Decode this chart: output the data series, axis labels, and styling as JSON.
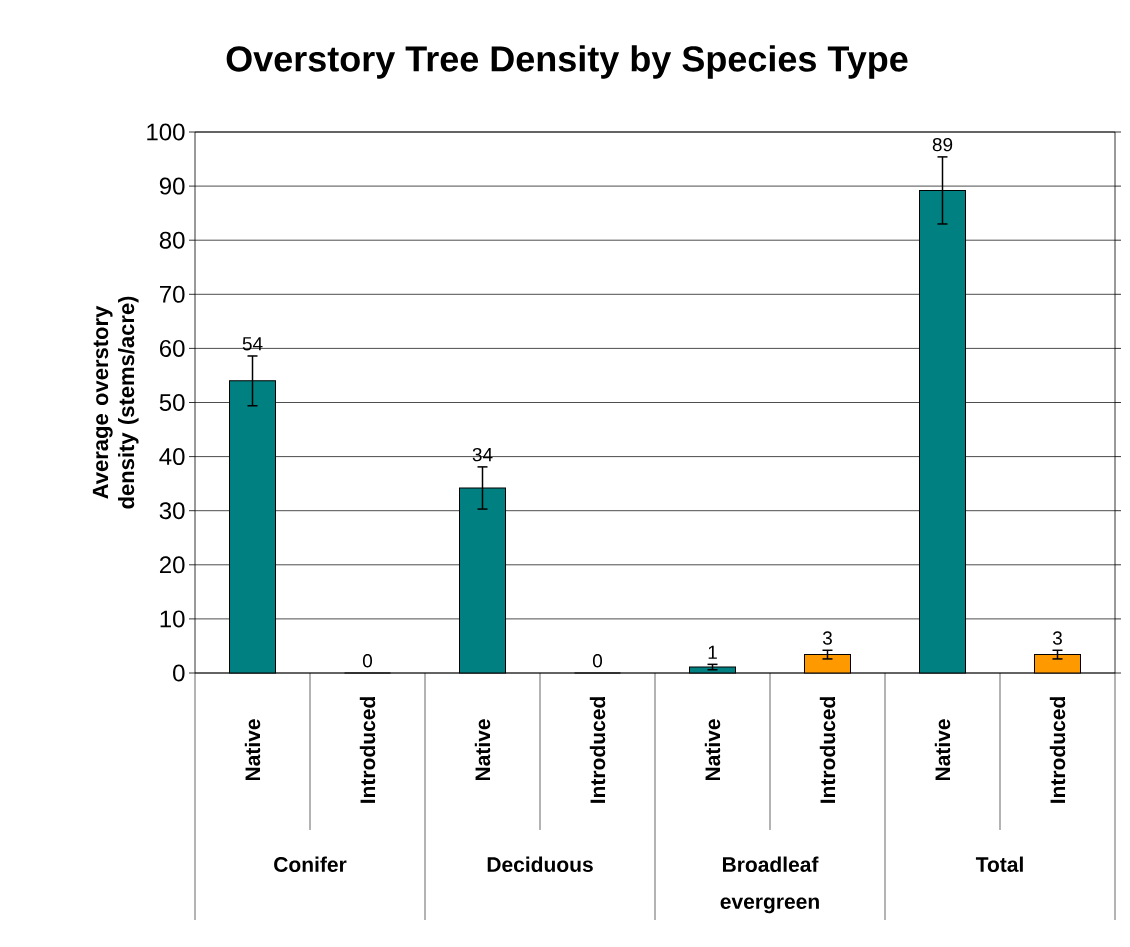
{
  "chart_data": {
    "type": "bar",
    "title": "Overstory Tree Density by Species Type",
    "ylabel": "Average overstory density (stems/acre)",
    "categories": [
      "Native",
      "Introduced",
      "Native",
      "Introduced",
      "Native",
      "Introduced",
      "Native",
      "Introduced"
    ],
    "values": [
      54,
      0,
      34.2,
      0,
      1.1,
      3.4,
      89.2,
      3.4
    ],
    "colors": [
      "#008080",
      "#ff9900",
      "#008080",
      "#ff9900",
      "#008080",
      "#ff9900",
      "#008080",
      "#ff9900"
    ],
    "errors": [
      4.6,
      null,
      3.9,
      null,
      0.5,
      0.8,
      6.2,
      0.8
    ],
    "value_labels": [
      "54",
      "0",
      "34",
      "0",
      "1",
      "3",
      "89",
      "3"
    ],
    "ylim": [
      0,
      100
    ],
    "yticks": [
      0,
      10,
      20,
      30,
      40,
      50,
      60,
      70,
      80,
      90,
      100
    ],
    "grid": "y",
    "annotations": [
      "Conifer",
      "Deciduous",
      "Broadleaf evergreen",
      "Total"
    ]
  }
}
